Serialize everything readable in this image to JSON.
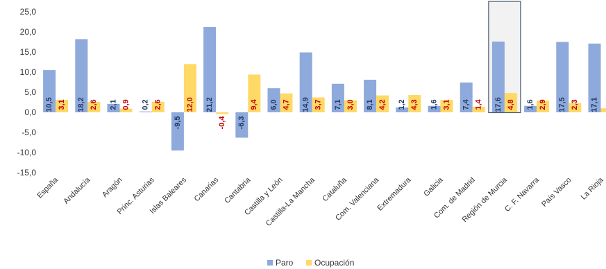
{
  "chart_data": {
    "type": "bar",
    "title": "",
    "xlabel": "",
    "ylabel": "",
    "ylim": [
      -15,
      25
    ],
    "yticks": [
      "25,0",
      "20,0",
      "15,0",
      "10,0",
      "5,0",
      "0,0",
      "-5,0",
      "-10,0",
      "-15,0"
    ],
    "grid": false,
    "legend_position": "bottom",
    "categories": [
      "España",
      "Andalucía",
      "Aragón",
      "Princ. Asturias",
      "Islas Baleares",
      "Canarias",
      "Cantabria",
      "Castilla y León",
      "Castilla-La Mancha",
      "Cataluña",
      "Com. Valenciana",
      "Extremadura",
      "Galicia",
      "Com. de Madrid",
      "Región de Murcia",
      "C. F. Navarra",
      "País Vasco",
      "La Rioja"
    ],
    "highlighted_category": "Región de Murcia",
    "series": [
      {
        "name": "Paro",
        "color": "#8EA9DB",
        "label_color": "#1F3864",
        "values": [
          10.5,
          18.2,
          2.1,
          0.2,
          -9.5,
          21.2,
          -6.3,
          6.0,
          14.9,
          7.1,
          8.1,
          1.2,
          1.6,
          7.4,
          17.6,
          1.6,
          17.5,
          17.1
        ],
        "labels": [
          "10,5",
          "18,2",
          "2,1",
          "0,2",
          "-9,5",
          "21,2",
          "-6,3",
          "6,0",
          "14,9",
          "7,1",
          "8,1",
          "1,2",
          "1,6",
          "7,4",
          "17,6",
          "1,6",
          "17,5",
          "17,1"
        ]
      },
      {
        "name": "Ocupación",
        "color": "#FFD966",
        "label_color": "#C00000",
        "values": [
          3.1,
          2.6,
          0.9,
          2.6,
          12.0,
          -0.4,
          9.4,
          4.7,
          3.7,
          3.0,
          4.2,
          4.3,
          3.1,
          1.4,
          4.8,
          2.9,
          2.3,
          1.0
        ],
        "labels": [
          "3,1",
          "2,6",
          "0,9",
          "2,6",
          "12,0",
          "-0,4",
          "9,4",
          "4,7",
          "3,7",
          "3,0",
          "4,2",
          "4,3",
          "3,1",
          "1,4",
          "4,8",
          "2,9",
          "2,3",
          ""
        ]
      }
    ]
  }
}
